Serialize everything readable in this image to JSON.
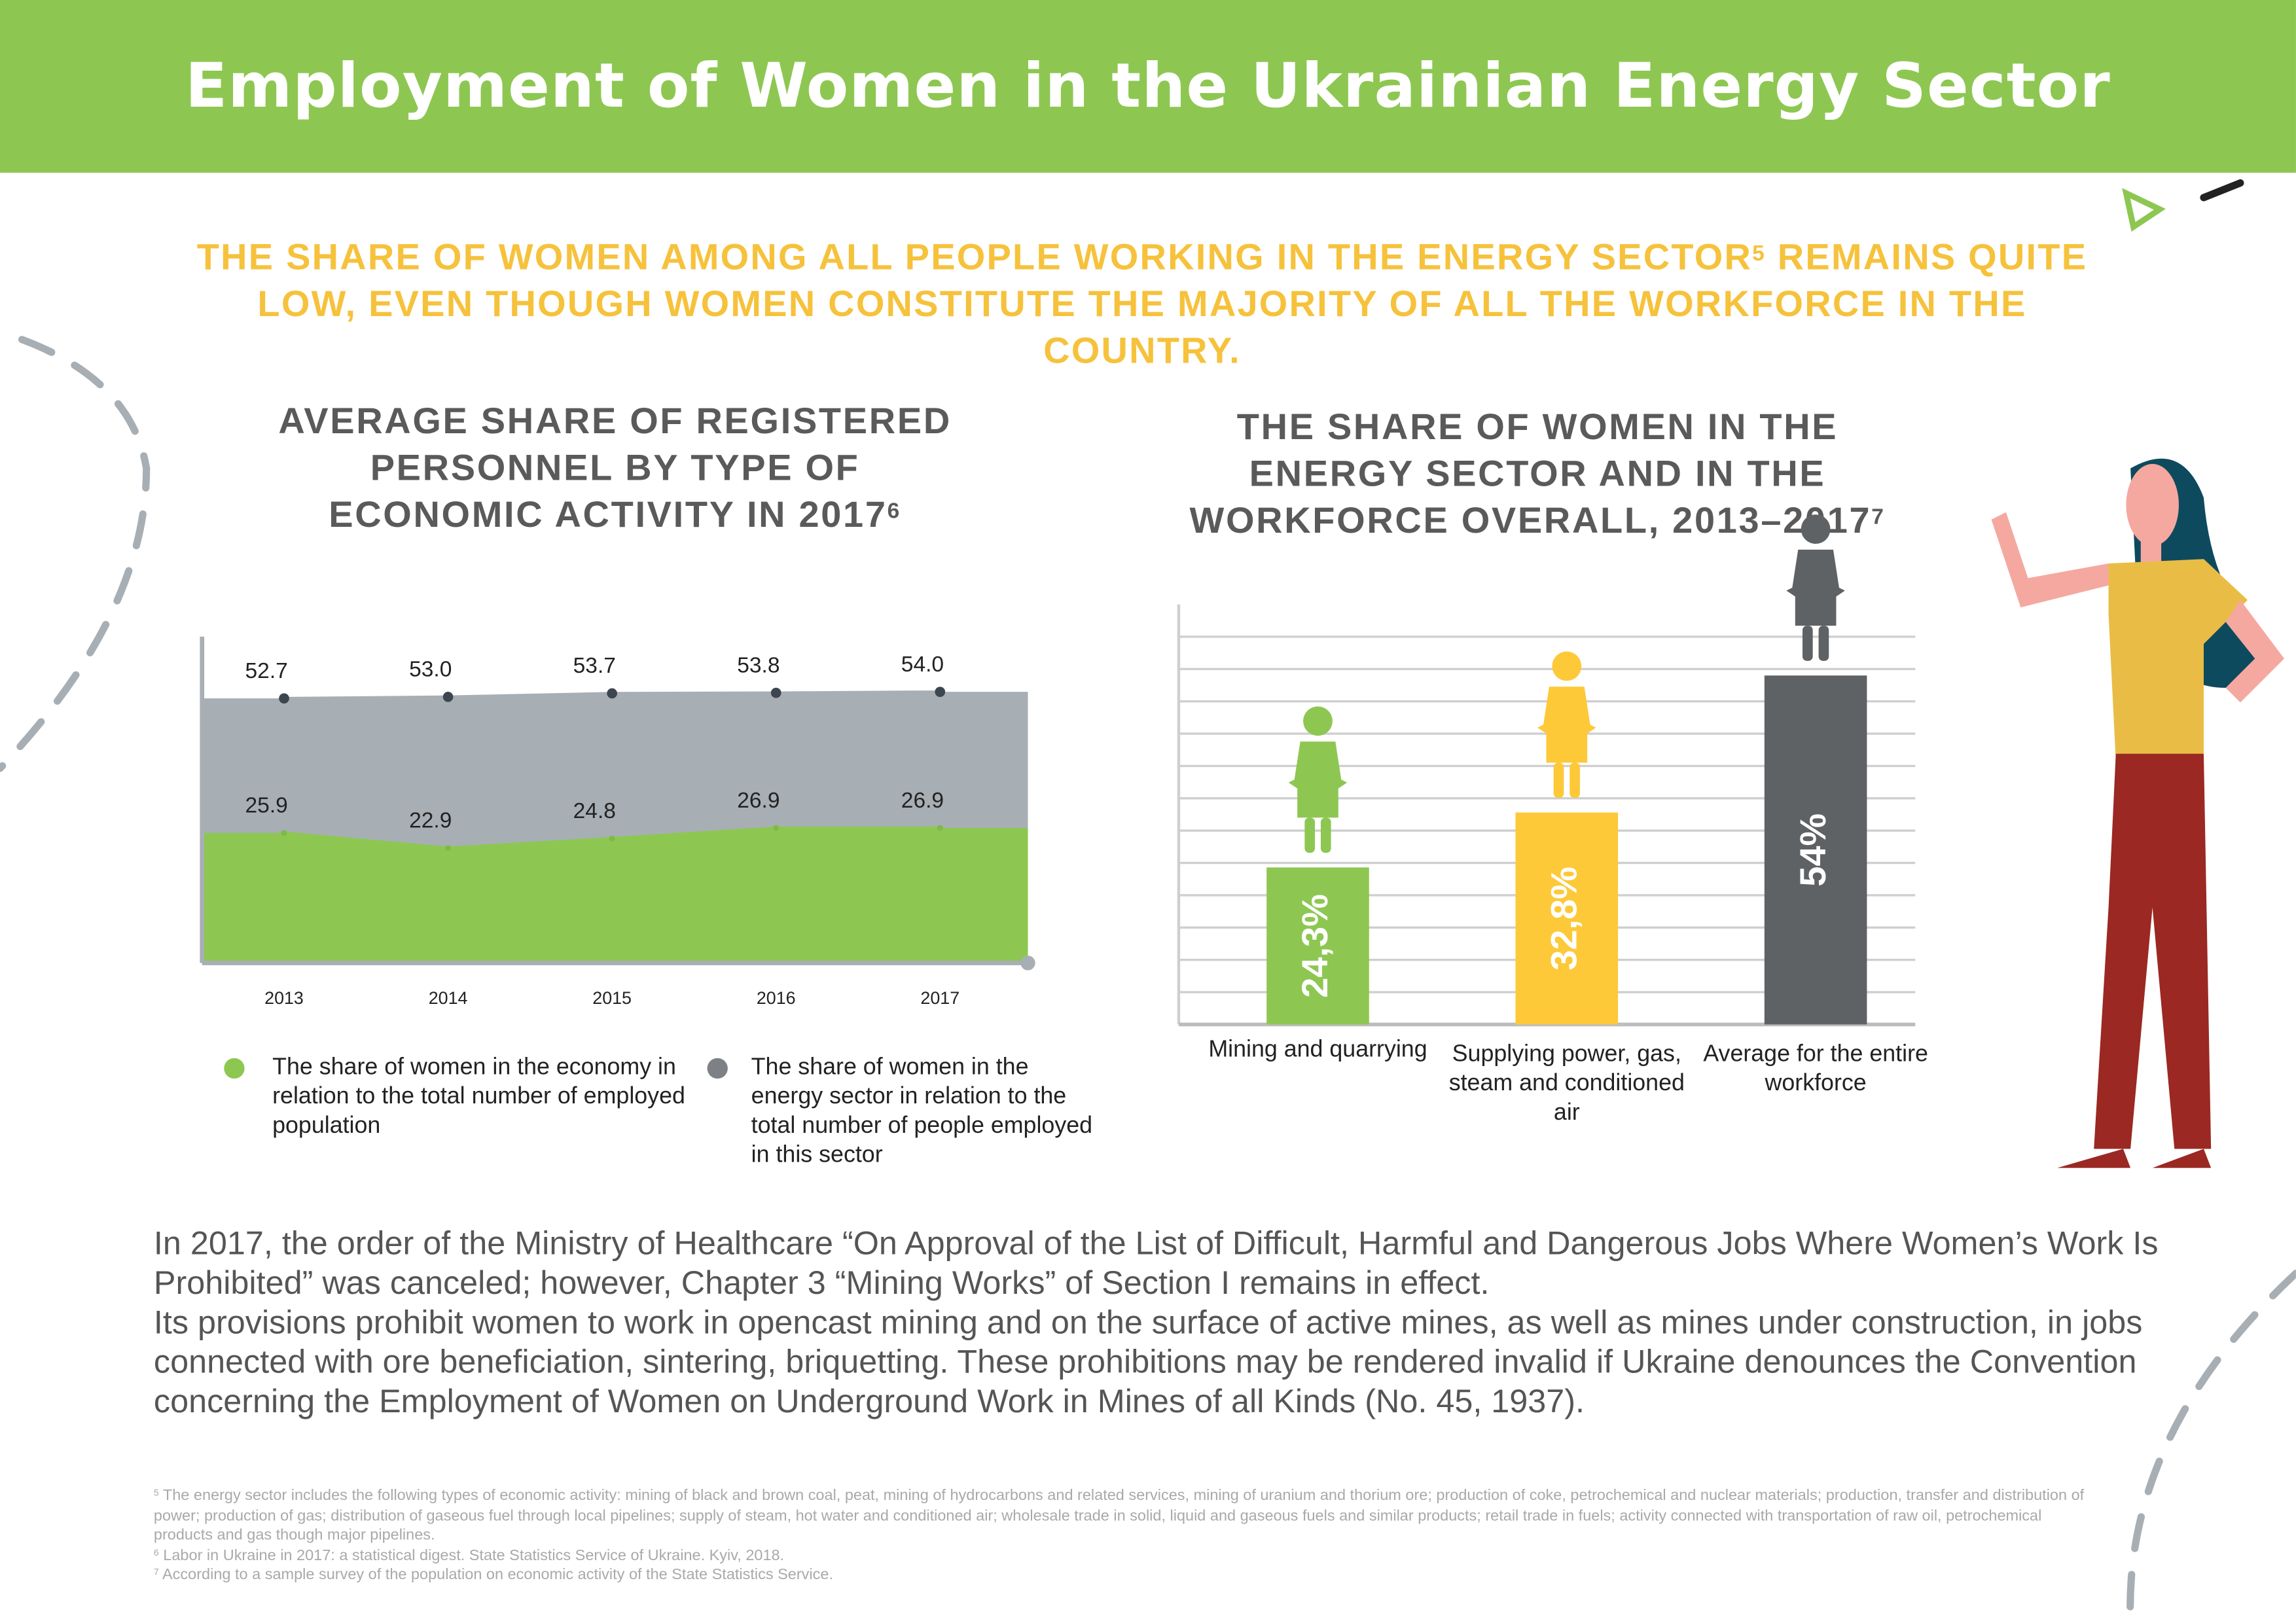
{
  "header": {
    "title": "Employment of Women in the Ukrainian Energy Sector"
  },
  "subtitle": {
    "before": "THE SHARE OF WOMEN AMONG ALL PEOPLE WORKING IN THE ENERGY SECTOR",
    "ref": "5",
    "after": " REMAINS QUITE LOW, EVEN THOUGH WOMEN CONSTITUTE THE MAJORITY OF ALL THE WORKFORCE IN THE COUNTRY."
  },
  "chart_data": [
    {
      "type": "area",
      "title": "AVERAGE SHARE OF REGISTERED PERSONNEL BY TYPE OF ECONOMIC ACTIVITY IN 2017",
      "title_ref": "6",
      "categories": [
        "2013",
        "2014",
        "2015",
        "2016",
        "2017"
      ],
      "ylim": [
        0,
        65
      ],
      "series": [
        {
          "name": "The share of women in the energy sector in relation to the total number of people employed in this sector",
          "color": "#a7afb5",
          "values": [
            52.7,
            53.0,
            53.7,
            53.8,
            54.0
          ],
          "value_labels": [
            "52.7",
            "53.0",
            "53.7",
            "53.8",
            "54.0"
          ]
        },
        {
          "name": "The share of women in the economy in relation to the total number of employed population",
          "color": "#8dc752",
          "values": [
            25.9,
            22.9,
            24.8,
            26.9,
            26.9
          ]
        }
      ]
    },
    {
      "type": "bar",
      "title": "THE SHARE OF WOMEN IN THE ENERGY SECTOR AND IN THE WORKFORCE OVERALL, 2013–2017",
      "title_ref": "7",
      "categories": [
        "Mining and quarrying",
        "Supplying power, gas, steam and conditioned air",
        "Average for the entire workforce"
      ],
      "values": [
        24.3,
        32.8,
        54
      ],
      "value_labels": [
        "24,3%",
        "32,8%",
        "54%"
      ],
      "colors": [
        "#8dc752",
        "#fdc938",
        "#5f6264"
      ],
      "ylim": [
        0,
        65
      ],
      "yticks": [
        0,
        5,
        10,
        15,
        20,
        25,
        30,
        35,
        40,
        45,
        50,
        55,
        60
      ],
      "grid": true
    }
  ],
  "body": [
    "In 2017, the order of the Ministry of Healthcare “On Approval of the List of Difficult, Harmful and Dangerous Jobs Where Women’s Work Is Prohibited” was canceled; however, Chapter 3 “Mining Works” of Section I remains in effect.",
    "Its provisions prohibit women to work in opencast mining and on the surface of active mines, as well as mines under construction, in jobs connected with ore beneficiation, sintering, briquetting. These prohibitions may be rendered invalid if Ukraine denounces the Convention concerning the Employment of Women on Underground Work in Mines of all Kinds (No. 45, 1937)."
  ],
  "footnotes": [
    {
      "ref": "5",
      "text": "The energy sector includes the following types of economic activity: mining of black and brown coal, peat, mining of hydrocarbons and related services, mining of uranium and thorium ore; production of coke, petrochemical and nuclear materials; production, transfer and distribution of power; production of gas; distribution of gaseous fuel through local pipelines; supply of steam, hot water and conditioned air; wholesale trade in solid, liquid and gaseous fuels and similar products; retail trade in fuels; activity connected with transportation of raw oil, petrochemical products and gas though major pipelines."
    },
    {
      "ref": "6",
      "text": "Labor in Ukraine in 2017: a statistical digest. State Statistics Service of Ukraine. Kyiv, 2018."
    },
    {
      "ref": "7",
      "text": "According to a sample survey of the population on economic activity of the State Statistics Service."
    }
  ]
}
